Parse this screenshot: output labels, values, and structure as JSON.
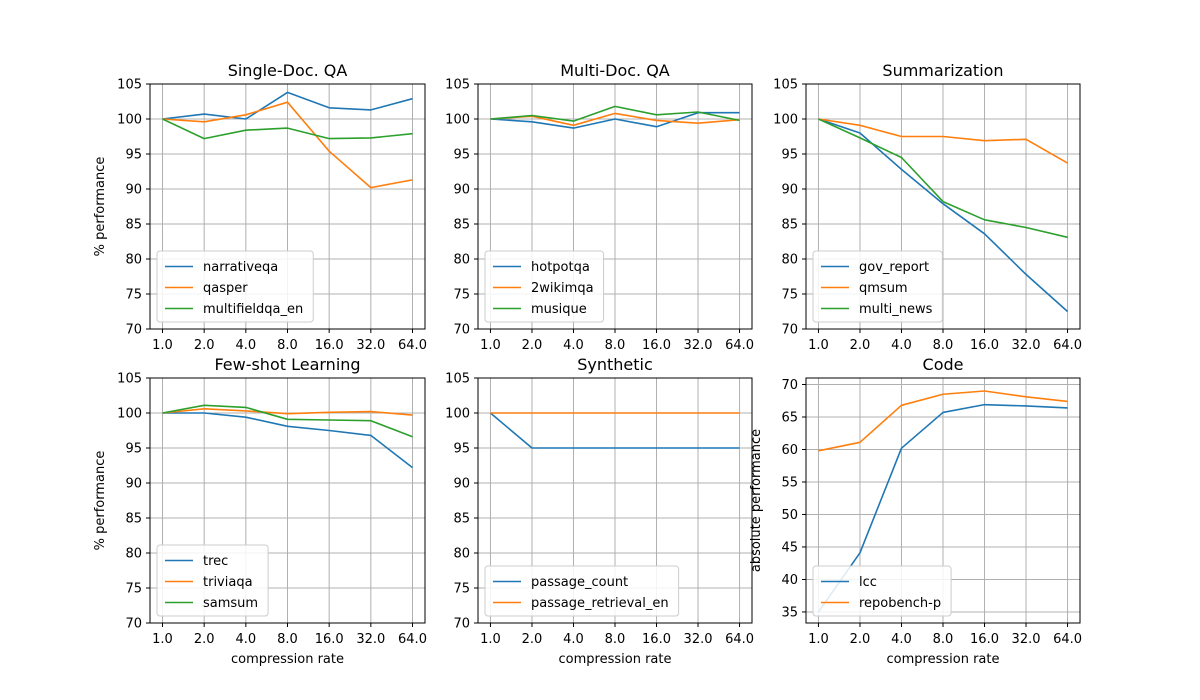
{
  "figure": {
    "colors": {
      "C0": "#1f77b4",
      "C1": "#ff7f0e",
      "C2": "#2ca02c",
      "grid": "#b0b0b0",
      "axes": "#000000"
    }
  },
  "chart_data": [
    {
      "type": "line",
      "title": "Single-Doc. QA",
      "xlabel": "",
      "ylabel": "% performance",
      "x_scale": "log2",
      "x": [
        1.0,
        2.0,
        4.0,
        8.0,
        16.0,
        32.0,
        64.0
      ],
      "x_tick_labels": [
        "1.0",
        "2.0",
        "4.0",
        "8.0",
        "16.0",
        "32.0",
        "64.0"
      ],
      "ylim": [
        70,
        105
      ],
      "y_ticks": [
        70,
        75,
        80,
        85,
        90,
        95,
        100,
        105
      ],
      "grid": true,
      "legend_location": "lower-left",
      "series": [
        {
          "name": "narrativeqa",
          "color": "#1f77b4",
          "values": [
            100,
            100.7,
            100,
            103.8,
            101.6,
            101.3,
            102.9
          ]
        },
        {
          "name": "qasper",
          "color": "#ff7f0e",
          "values": [
            100,
            99.6,
            100.6,
            102.4,
            95.4,
            90.2,
            91.3
          ]
        },
        {
          "name": "multifieldqa_en",
          "color": "#2ca02c",
          "values": [
            100,
            97.2,
            98.4,
            98.7,
            97.2,
            97.3,
            97.9
          ]
        }
      ]
    },
    {
      "type": "line",
      "title": "Multi-Doc. QA",
      "xlabel": "",
      "ylabel": "",
      "x_scale": "log2",
      "x": [
        1.0,
        2.0,
        4.0,
        8.0,
        16.0,
        32.0,
        64.0
      ],
      "x_tick_labels": [
        "1.0",
        "2.0",
        "4.0",
        "8.0",
        "16.0",
        "32.0",
        "64.0"
      ],
      "ylim": [
        70,
        105
      ],
      "y_ticks": [
        70,
        75,
        80,
        85,
        90,
        95,
        100,
        105
      ],
      "grid": true,
      "legend_location": "lower-left",
      "series": [
        {
          "name": "hotpotqa",
          "color": "#1f77b4",
          "values": [
            100,
            99.6,
            98.7,
            100.0,
            98.9,
            100.9,
            100.9
          ]
        },
        {
          "name": "2wikimqa",
          "color": "#ff7f0e",
          "values": [
            100,
            100.4,
            99.1,
            100.8,
            99.8,
            99.4,
            99.9
          ]
        },
        {
          "name": "musique",
          "color": "#2ca02c",
          "values": [
            100,
            100.5,
            99.7,
            101.8,
            100.6,
            101.0,
            99.8
          ]
        }
      ]
    },
    {
      "type": "line",
      "title": "Summarization",
      "xlabel": "",
      "ylabel": "",
      "x_scale": "log2",
      "x": [
        1.0,
        2.0,
        4.0,
        8.0,
        16.0,
        32.0,
        64.0
      ],
      "x_tick_labels": [
        "1.0",
        "2.0",
        "4.0",
        "8.0",
        "16.0",
        "32.0",
        "64.0"
      ],
      "ylim": [
        70,
        105
      ],
      "y_ticks": [
        70,
        75,
        80,
        85,
        90,
        95,
        100,
        105
      ],
      "grid": true,
      "legend_location": "lower-left",
      "series": [
        {
          "name": "gov_report",
          "color": "#1f77b4",
          "values": [
            100,
            98.0,
            92.8,
            87.9,
            83.6,
            77.8,
            72.5
          ]
        },
        {
          "name": "qmsum",
          "color": "#ff7f0e",
          "values": [
            100,
            99.1,
            97.5,
            97.5,
            96.9,
            97.1,
            93.7
          ]
        },
        {
          "name": "multi_news",
          "color": "#2ca02c",
          "values": [
            100,
            97.3,
            94.5,
            88.2,
            85.6,
            84.5,
            83.1
          ]
        }
      ]
    },
    {
      "type": "line",
      "title": "Few-shot Learning",
      "xlabel": "compression rate",
      "ylabel": "% performance",
      "x_scale": "log2",
      "x": [
        1.0,
        2.0,
        4.0,
        8.0,
        16.0,
        32.0,
        64.0
      ],
      "x_tick_labels": [
        "1.0",
        "2.0",
        "4.0",
        "8.0",
        "16.0",
        "32.0",
        "64.0"
      ],
      "ylim": [
        70,
        105
      ],
      "y_ticks": [
        70,
        75,
        80,
        85,
        90,
        95,
        100,
        105
      ],
      "grid": true,
      "legend_location": "lower-left",
      "series": [
        {
          "name": "trec",
          "color": "#1f77b4",
          "values": [
            100,
            100.0,
            99.4,
            98.1,
            97.5,
            96.8,
            92.2
          ]
        },
        {
          "name": "triviaqa",
          "color": "#ff7f0e",
          "values": [
            100,
            100.6,
            100.3,
            99.9,
            100.1,
            100.2,
            99.7
          ]
        },
        {
          "name": "samsum",
          "color": "#2ca02c",
          "values": [
            100,
            101.1,
            100.8,
            99.1,
            99.0,
            98.9,
            96.6
          ]
        }
      ]
    },
    {
      "type": "line",
      "title": "Synthetic",
      "xlabel": "compression rate",
      "ylabel": "",
      "x_scale": "log2",
      "x": [
        1.0,
        2.0,
        4.0,
        8.0,
        16.0,
        32.0,
        64.0
      ],
      "x_tick_labels": [
        "1.0",
        "2.0",
        "4.0",
        "8.0",
        "16.0",
        "32.0",
        "64.0"
      ],
      "ylim": [
        70,
        105
      ],
      "y_ticks": [
        70,
        75,
        80,
        85,
        90,
        95,
        100,
        105
      ],
      "grid": true,
      "legend_location": "lower-left",
      "series": [
        {
          "name": "passage_count",
          "color": "#1f77b4",
          "values": [
            100,
            95,
            95,
            95,
            95,
            95,
            95
          ]
        },
        {
          "name": "passage_retrieval_en",
          "color": "#ff7f0e",
          "values": [
            100,
            100,
            100,
            100,
            100,
            100,
            100
          ]
        }
      ]
    },
    {
      "type": "line",
      "title": "Code",
      "xlabel": "compression rate",
      "ylabel": "absolute performance",
      "x_scale": "log2",
      "x": [
        1.0,
        2.0,
        4.0,
        8.0,
        16.0,
        32.0,
        64.0
      ],
      "x_tick_labels": [
        "1.0",
        "2.0",
        "4.0",
        "8.0",
        "16.0",
        "32.0",
        "64.0"
      ],
      "ylim": [
        33.3,
        71.0
      ],
      "y_ticks": [
        35,
        40,
        45,
        50,
        55,
        60,
        65,
        70
      ],
      "grid": true,
      "legend_location": "lower-left",
      "series": [
        {
          "name": "lcc",
          "color": "#1f77b4",
          "values": [
            35.0,
            44.1,
            60.2,
            65.7,
            66.9,
            66.7,
            66.4
          ]
        },
        {
          "name": "repobench-p",
          "color": "#ff7f0e",
          "values": [
            59.8,
            61.1,
            66.8,
            68.5,
            69.0,
            68.1,
            67.4
          ]
        }
      ]
    }
  ]
}
